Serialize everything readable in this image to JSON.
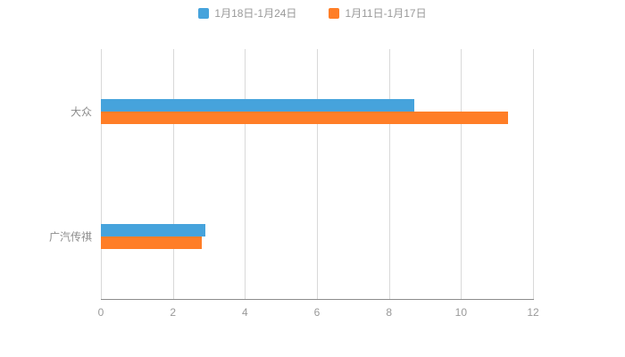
{
  "chart_data": {
    "type": "bar",
    "orientation": "horizontal",
    "title": "",
    "categories": [
      "大众",
      "广汽传祺"
    ],
    "series": [
      {
        "name": "1月18日-1月24日",
        "color": "#46A3DC",
        "values": [
          8.7,
          2.9
        ]
      },
      {
        "name": "1月11日-1月17日",
        "color": "#FF7E27",
        "values": [
          11.3,
          2.8
        ]
      }
    ],
    "xlim": [
      0,
      12
    ],
    "x_ticks": [
      0,
      2,
      4,
      6,
      8,
      10,
      12
    ],
    "grid": true,
    "legend_position": "top-center"
  },
  "styles": {
    "background": "#ffffff",
    "grid_color": "#d9d9d9",
    "axis_color": "#8c8c8c",
    "tick_label_color": "#999999",
    "category_label_color": "#8c8c8c",
    "legend_text_color": "#999999"
  }
}
